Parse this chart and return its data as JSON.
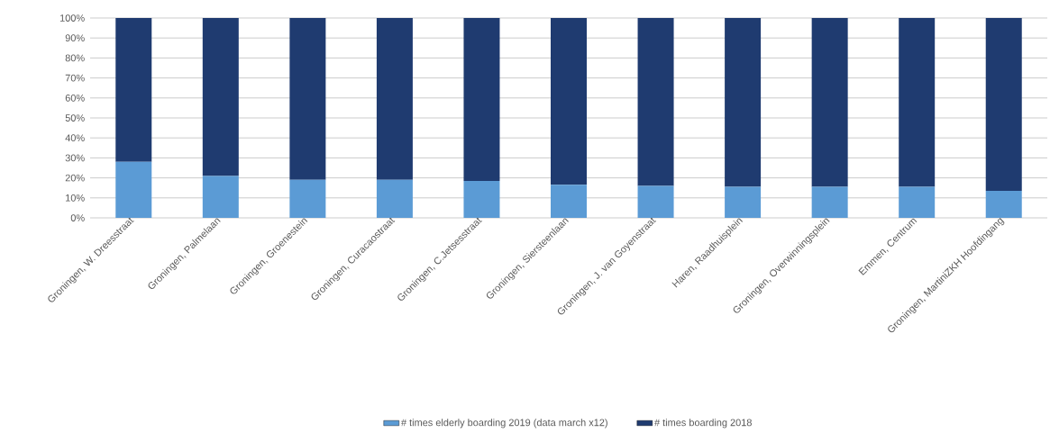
{
  "chart_data": {
    "type": "bar",
    "stacked": true,
    "categories": [
      "Groningen, W. Dreesstraat",
      "Groningen, Palmelaan",
      "Groningen, Groenestein",
      "Groningen, Curacaostraat",
      "Groningen, C.Jetsesstraat",
      "Groningen, Siersteenlaan",
      "Groningen, J. van Goyenstraat",
      "Haren, Raadhuisplein",
      "Groningen, Overwinningsplein",
      "Emmen, Centrum",
      "Groningen, MartiniZKH Hoofdingang"
    ],
    "series": [
      {
        "name": "# times elderly boarding 2019 (data march x12)",
        "color": "#5b9bd5",
        "values": [
          28,
          21,
          19,
          19,
          18.5,
          16.5,
          16,
          15.5,
          15.5,
          15.5,
          13.5
        ]
      },
      {
        "name": "# times boarding 2018",
        "color": "#1f3b70",
        "values": [
          72,
          79,
          81,
          81,
          81.5,
          83.5,
          84,
          84.5,
          84.5,
          84.5,
          86.5
        ]
      }
    ],
    "ylim": [
      0,
      100
    ],
    "yticks": [
      {
        "value": 0,
        "label": "0%"
      },
      {
        "value": 10,
        "label": "10%"
      },
      {
        "value": 20,
        "label": "20%"
      },
      {
        "value": 30,
        "label": "30%"
      },
      {
        "value": 40,
        "label": "40%"
      },
      {
        "value": 50,
        "label": "50%"
      },
      {
        "value": 60,
        "label": "60%"
      },
      {
        "value": 70,
        "label": "70%"
      },
      {
        "value": 80,
        "label": "80%"
      },
      {
        "value": 90,
        "label": "90%"
      },
      {
        "value": 100,
        "label": "100%"
      }
    ],
    "grid": "y",
    "legend": "bottom"
  }
}
